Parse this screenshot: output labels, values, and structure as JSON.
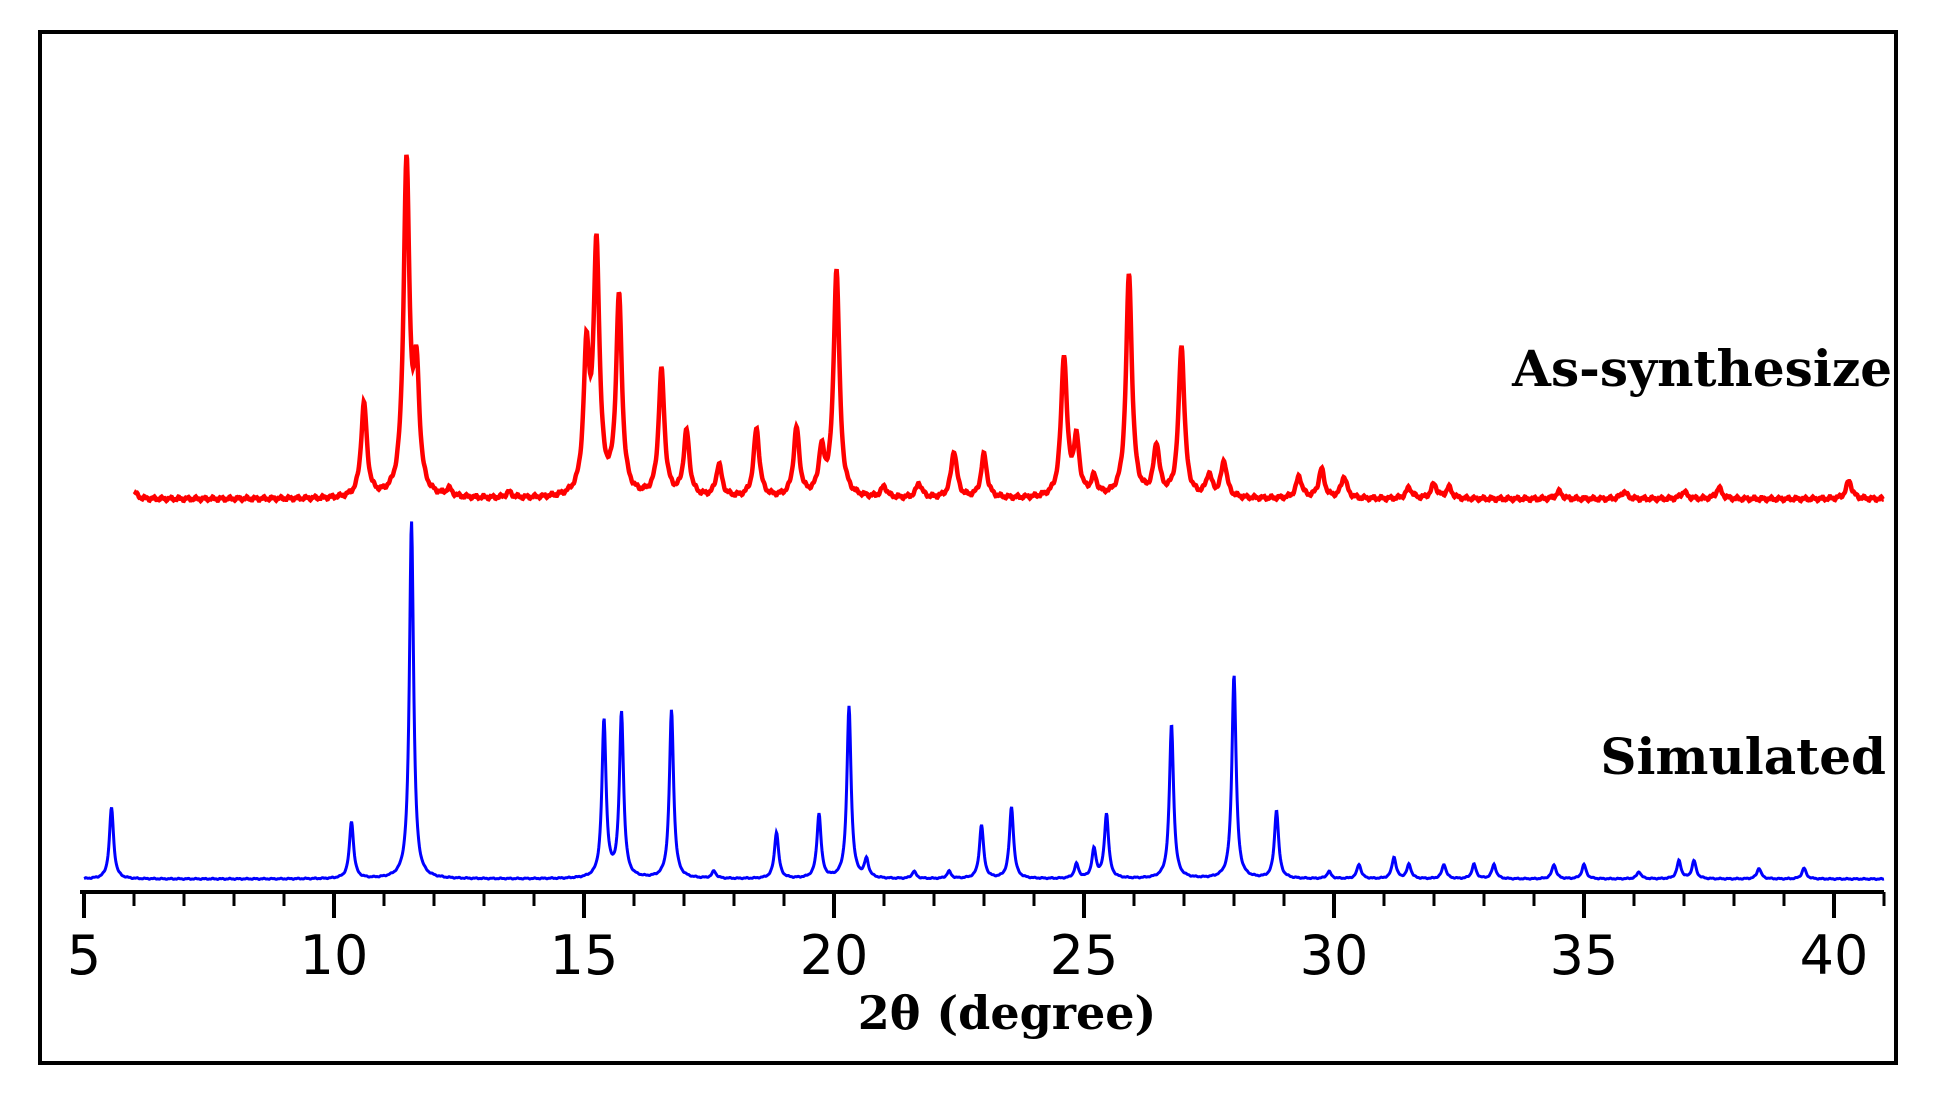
{
  "chart_data": {
    "type": "line",
    "xlabel": "2θ (degree)",
    "ylabel": "",
    "xlim": [
      5,
      41
    ],
    "xticks": [
      5,
      10,
      15,
      20,
      25,
      30,
      35,
      40
    ],
    "grid": false,
    "legend": "inline labels at right",
    "colors": {
      "as_synthesized": "#ff0000",
      "simulated": "#0000ff"
    },
    "series": [
      {
        "name": "As-synthesized",
        "color": "#ff0000",
        "baseline": 0,
        "peaks": [
          [
            10.6,
            0.26,
            0.07
          ],
          [
            11.45,
            0.92,
            0.07
          ],
          [
            11.65,
            0.32,
            0.07
          ],
          [
            15.05,
            0.38,
            0.07
          ],
          [
            15.25,
            0.68,
            0.07
          ],
          [
            15.7,
            0.55,
            0.07
          ],
          [
            16.55,
            0.35,
            0.07
          ],
          [
            17.05,
            0.18,
            0.07
          ],
          [
            17.7,
            0.09,
            0.07
          ],
          [
            18.45,
            0.19,
            0.07
          ],
          [
            19.25,
            0.19,
            0.07
          ],
          [
            19.75,
            0.12,
            0.07
          ],
          [
            20.05,
            0.63,
            0.07
          ],
          [
            21.0,
            0.03,
            0.07
          ],
          [
            21.7,
            0.04,
            0.07
          ],
          [
            22.4,
            0.13,
            0.07
          ],
          [
            23.0,
            0.12,
            0.07
          ],
          [
            24.6,
            0.39,
            0.07
          ],
          [
            24.85,
            0.15,
            0.07
          ],
          [
            25.2,
            0.05,
            0.07
          ],
          [
            25.9,
            0.62,
            0.07
          ],
          [
            26.45,
            0.14,
            0.07
          ],
          [
            26.95,
            0.42,
            0.07
          ],
          [
            27.5,
            0.06,
            0.07
          ],
          [
            27.8,
            0.1,
            0.07
          ],
          [
            29.3,
            0.06,
            0.07
          ],
          [
            29.75,
            0.08,
            0.07
          ],
          [
            30.2,
            0.06,
            0.07
          ],
          [
            31.5,
            0.03,
            0.07
          ],
          [
            32.0,
            0.04,
            0.07
          ],
          [
            32.3,
            0.03,
            0.07
          ],
          [
            34.5,
            0.02,
            0.07
          ],
          [
            35.8,
            0.02,
            0.07
          ],
          [
            37.0,
            0.02,
            0.07
          ],
          [
            37.7,
            0.03,
            0.07
          ],
          [
            40.3,
            0.05,
            0.07
          ],
          [
            6.0,
            0.02,
            0.07
          ],
          [
            12.3,
            0.02,
            0.07
          ],
          [
            13.5,
            0.015,
            0.07
          ]
        ]
      },
      {
        "name": "Simulated",
        "color": "#0000ff",
        "baseline": 0,
        "peaks": [
          [
            5.55,
            0.2,
            0.05
          ],
          [
            10.35,
            0.16,
            0.05
          ],
          [
            11.55,
            1.0,
            0.05
          ],
          [
            15.4,
            0.44,
            0.05
          ],
          [
            15.75,
            0.46,
            0.05
          ],
          [
            16.75,
            0.47,
            0.05
          ],
          [
            17.6,
            0.02,
            0.05
          ],
          [
            18.85,
            0.13,
            0.05
          ],
          [
            19.7,
            0.18,
            0.05
          ],
          [
            20.3,
            0.48,
            0.05
          ],
          [
            20.65,
            0.05,
            0.05
          ],
          [
            21.6,
            0.02,
            0.05
          ],
          [
            22.3,
            0.02,
            0.05
          ],
          [
            22.95,
            0.15,
            0.05
          ],
          [
            23.55,
            0.2,
            0.05
          ],
          [
            24.85,
            0.04,
            0.05
          ],
          [
            25.2,
            0.08,
            0.05
          ],
          [
            25.45,
            0.18,
            0.05
          ],
          [
            26.75,
            0.43,
            0.05
          ],
          [
            28.0,
            0.57,
            0.05
          ],
          [
            28.85,
            0.19,
            0.05
          ],
          [
            29.9,
            0.02,
            0.05
          ],
          [
            30.5,
            0.04,
            0.05
          ],
          [
            31.2,
            0.06,
            0.05
          ],
          [
            31.5,
            0.04,
            0.05
          ],
          [
            32.2,
            0.04,
            0.05
          ],
          [
            32.8,
            0.04,
            0.05
          ],
          [
            33.2,
            0.04,
            0.05
          ],
          [
            34.4,
            0.04,
            0.05
          ],
          [
            35.0,
            0.04,
            0.05
          ],
          [
            36.1,
            0.02,
            0.05
          ],
          [
            36.9,
            0.05,
            0.05
          ],
          [
            37.2,
            0.05,
            0.05
          ],
          [
            38.5,
            0.03,
            0.05
          ],
          [
            39.4,
            0.03,
            0.05
          ]
        ]
      }
    ]
  }
}
